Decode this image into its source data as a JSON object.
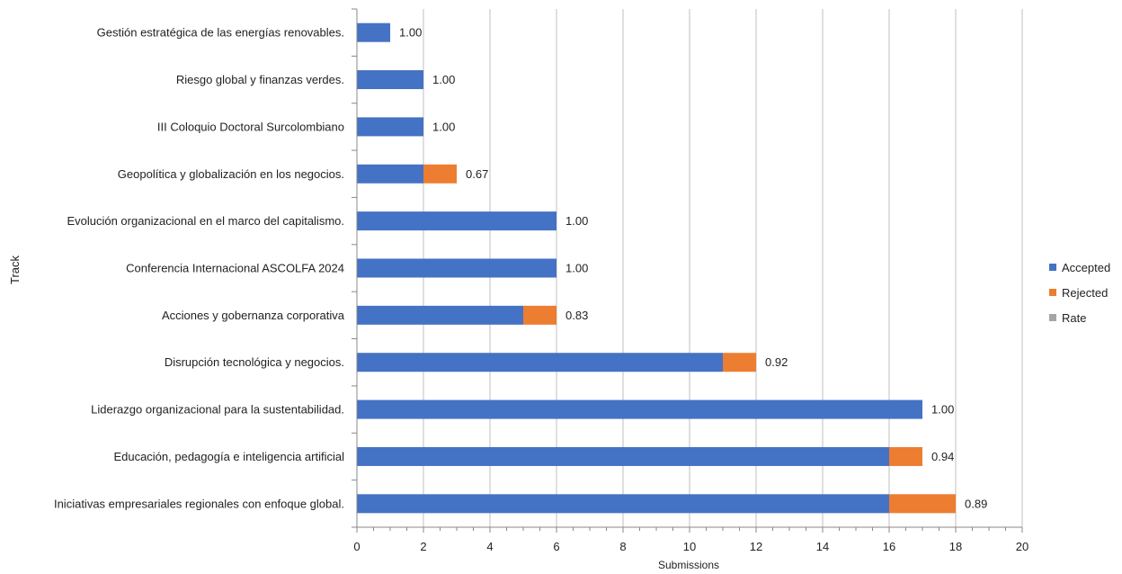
{
  "colors": {
    "accepted": "#4472C4",
    "rejected": "#ED7D31",
    "rate": "#A5A5A5",
    "grid": "#BFBFBF",
    "axis": "#888888"
  },
  "chart_data": {
    "type": "bar",
    "orientation": "horizontal",
    "stacked": true,
    "xlabel": "Submissions",
    "ylabel": "Track",
    "xlim": [
      0,
      20
    ],
    "xticks": [
      0,
      2,
      4,
      6,
      8,
      10,
      12,
      14,
      16,
      18,
      20
    ],
    "grid": true,
    "legend_position": "right",
    "categories": [
      "Gestión estratégica de las energías renovables.",
      "Riesgo global y finanzas verdes.",
      "III Coloquio Doctoral Surcolombiano",
      "Geopolítica y globalización en los negocios.",
      "Evolución organizacional en el marco del capitalismo.",
      "Conferencia Internacional ASCOLFA 2024",
      "Acciones y gobernanza corporativa",
      "Disrupción tecnológica y negocios.",
      "Liderazgo organizacional para la sustentabilidad.",
      "Educación, pedagogía e inteligencia artificial",
      "Iniciativas empresariales regionales con enfoque global."
    ],
    "series": [
      {
        "name": "Accepted",
        "values": [
          1,
          2,
          2,
          2,
          6,
          6,
          5,
          11,
          17,
          16,
          16
        ]
      },
      {
        "name": "Rejected",
        "values": [
          0,
          0,
          0,
          1,
          0,
          0,
          1,
          1,
          0,
          1,
          2
        ]
      },
      {
        "name": "Rate",
        "values": [
          1.0,
          1.0,
          1.0,
          0.67,
          1.0,
          1.0,
          0.83,
          0.92,
          1.0,
          0.94,
          0.89
        ]
      }
    ],
    "rate_labels": [
      "1.00",
      "1.00",
      "1.00",
      "0.67",
      "1.00",
      "1.00",
      "0.83",
      "0.92",
      "1.00",
      "0.94",
      "0.89"
    ]
  }
}
